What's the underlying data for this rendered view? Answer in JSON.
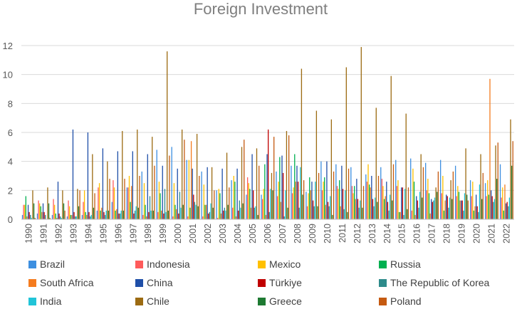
{
  "chart_data": {
    "type": "bar",
    "title": "Foreign Investment",
    "xlabel": "",
    "ylabel": "",
    "ylim": [
      0,
      12
    ],
    "yticks": [
      0,
      2,
      4,
      6,
      8,
      10,
      12
    ],
    "grid": true,
    "legend_position": "bottom",
    "categories": [
      "1990",
      "1991",
      "1992",
      "1993",
      "1994",
      "1995",
      "1996",
      "1997",
      "1998",
      "1999",
      "2000",
      "2001",
      "2002",
      "2003",
      "2004",
      "2005",
      "2006",
      "2007",
      "2008",
      "2009",
      "2010",
      "2011",
      "2012",
      "2013",
      "2014",
      "2015",
      "2016",
      "2017",
      "2018",
      "2019",
      "2020",
      "2021",
      "2022"
    ],
    "series": [
      {
        "name": "Brazil",
        "color": "#3d8fe0",
        "values": [
          0.3,
          0.4,
          0.3,
          0.2,
          0.3,
          0.6,
          1.2,
          2.2,
          3.3,
          4.8,
          5.0,
          4.1,
          3.3,
          2.0,
          2.7,
          1.7,
          1.7,
          3.3,
          3.7,
          1.9,
          4.0,
          3.8,
          3.6,
          3.1,
          3.6,
          4.1,
          4.2,
          3.9,
          4.1,
          3.7,
          2.7,
          2.5,
          3.8
        ]
      },
      {
        "name": "Indonesia",
        "color": "#ff5b5b",
        "values": [
          1.0,
          1.3,
          1.4,
          1.3,
          1.2,
          2.2,
          2.7,
          2.2,
          0.3,
          0.5,
          0.2,
          0.2,
          0.2,
          0.1,
          0.8,
          2.9,
          1.4,
          1.6,
          1.8,
          0.9,
          2.0,
          2.3,
          2.3,
          2.6,
          2.8,
          2.3,
          0.6,
          2.0,
          1.8,
          1.6,
          1.6,
          1.6,
          1.5
        ]
      },
      {
        "name": "Mexico",
        "color": "#ffc000",
        "values": [
          1.0,
          1.1,
          1.0,
          0.9,
          2.0,
          2.5,
          2.2,
          3.0,
          2.5,
          2.6,
          2.5,
          4.1,
          2.4,
          2.1,
          3.0,
          2.5,
          2.1,
          2.6,
          2.2,
          1.8,
          2.6,
          2.1,
          1.8,
          3.8,
          2.3,
          2.7,
          3.5,
          2.8,
          3.0,
          2.3,
          2.6,
          2.7,
          2.2
        ]
      },
      {
        "name": "Russia",
        "color": "#00b050",
        "values": [
          1.6,
          0.9,
          0.4,
          0.3,
          0.5,
          0.6,
          0.6,
          1.2,
          1.0,
          1.8,
          1.0,
          0.8,
          1.0,
          1.8,
          2.6,
          2.1,
          3.8,
          4.3,
          4.5,
          2.9,
          2.9,
          2.7,
          2.3,
          2.4,
          1.4,
          0.5,
          2.6,
          1.8,
          0.6,
          1.9,
          0.6,
          1.7,
          0.6
        ]
      },
      {
        "name": "South Africa",
        "color": "#f57c1f",
        "values": [
          0.2,
          0.5,
          0.1,
          0.3,
          0.3,
          0.8,
          0.7,
          2.3,
          0.2,
          0.6,
          0.7,
          5.4,
          1.0,
          0.4,
          0.2,
          0.8,
          0.3,
          1.2,
          2.6,
          2.0,
          1.0,
          0.9,
          1.4,
          2.2,
          1.6,
          0.5,
          0.3,
          0.4,
          1.3,
          1.3,
          0.9,
          9.7,
          2.4
        ]
      },
      {
        "name": "China",
        "color": "#1f4fa8",
        "values": [
          1.0,
          1.1,
          2.6,
          6.2,
          6.0,
          4.9,
          4.7,
          4.7,
          4.5,
          3.7,
          3.5,
          3.5,
          3.6,
          3.5,
          3.5,
          4.5,
          4.5,
          4.4,
          3.7,
          2.6,
          4.0,
          3.7,
          2.8,
          3.0,
          2.6,
          2.2,
          1.6,
          1.4,
          1.7,
          1.3,
          1.7,
          2.0,
          1.1
        ]
      },
      {
        "name": "Türkiye",
        "color": "#c00000",
        "values": [
          0.5,
          0.5,
          0.4,
          0.5,
          0.5,
          0.5,
          0.4,
          0.4,
          0.5,
          0.4,
          0.4,
          1.7,
          0.4,
          0.6,
          0.6,
          2.0,
          6.2,
          3.2,
          2.6,
          1.3,
          1.2,
          2.1,
          1.4,
          1.4,
          1.2,
          2.2,
          1.3,
          1.2,
          1.6,
          1.3,
          0.9,
          1.6,
          1.2
        ]
      },
      {
        "name": "The Republic of Korea",
        "color": "#2e8b8b",
        "values": [
          0.3,
          0.3,
          0.2,
          0.2,
          0.2,
          0.3,
          0.4,
          0.6,
          1.6,
          2.1,
          1.9,
          1.2,
          0.5,
          0.8,
          1.3,
          0.8,
          0.5,
          0.2,
          0.8,
          0.9,
          0.9,
          0.7,
          0.8,
          0.9,
          0.6,
          0.3,
          0.8,
          1.3,
          0.8,
          0.6,
          0.5,
          1.2,
          0.9
        ]
      },
      {
        "name": "India",
        "color": "#21c4d8",
        "values": [
          0.1,
          0.0,
          0.1,
          0.2,
          0.3,
          0.6,
          0.6,
          0.9,
          0.6,
          0.5,
          0.8,
          1.0,
          1.1,
          0.6,
          0.8,
          0.9,
          2.1,
          2.0,
          3.6,
          2.6,
          1.6,
          2.0,
          1.3,
          1.5,
          1.7,
          2.1,
          1.9,
          1.5,
          1.5,
          1.8,
          2.4,
          1.4,
          1.5
        ]
      },
      {
        "name": "Chile",
        "color": "#9c6b12",
        "values": [
          2.0,
          2.2,
          2.0,
          2.1,
          4.5,
          4.0,
          6.1,
          6.2,
          5.7,
          11.6,
          6.2,
          5.9,
          3.6,
          4.6,
          5.0,
          4.9,
          3.2,
          6.1,
          10.4,
          7.5,
          6.9,
          10.5,
          11.9,
          7.7,
          9.9,
          7.3,
          4.5,
          2.2,
          2.7,
          4.9,
          4.5,
          5.1,
          6.9
        ]
      },
      {
        "name": "Greece",
        "color": "#1e7a32",
        "values": [
          1.1,
          1.1,
          1.1,
          0.9,
          0.8,
          0.6,
          0.6,
          0.8,
          0.6,
          0.6,
          1.0,
          0.9,
          0.8,
          1.0,
          1.1,
          0.3,
          2.0,
          0.8,
          1.7,
          0.9,
          0.3,
          0.5,
          0.8,
          1.2,
          1.3,
          0.7,
          1.5,
          1.9,
          1.4,
          1.7,
          1.4,
          2.8,
          3.7
        ]
      },
      {
        "name": "Poland",
        "color": "#c55a11",
        "values": [
          0.1,
          0.1,
          0.6,
          2.0,
          1.8,
          2.8,
          2.8,
          3.0,
          3.7,
          4.4,
          5.5,
          3.0,
          2.0,
          2.2,
          5.5,
          3.7,
          5.7,
          5.8,
          2.7,
          3.2,
          3.3,
          3.5,
          2.3,
          3.0,
          3.8,
          2.2,
          3.6,
          3.3,
          3.3,
          1.3,
          3.2,
          5.3,
          5.4
        ]
      }
    ]
  }
}
